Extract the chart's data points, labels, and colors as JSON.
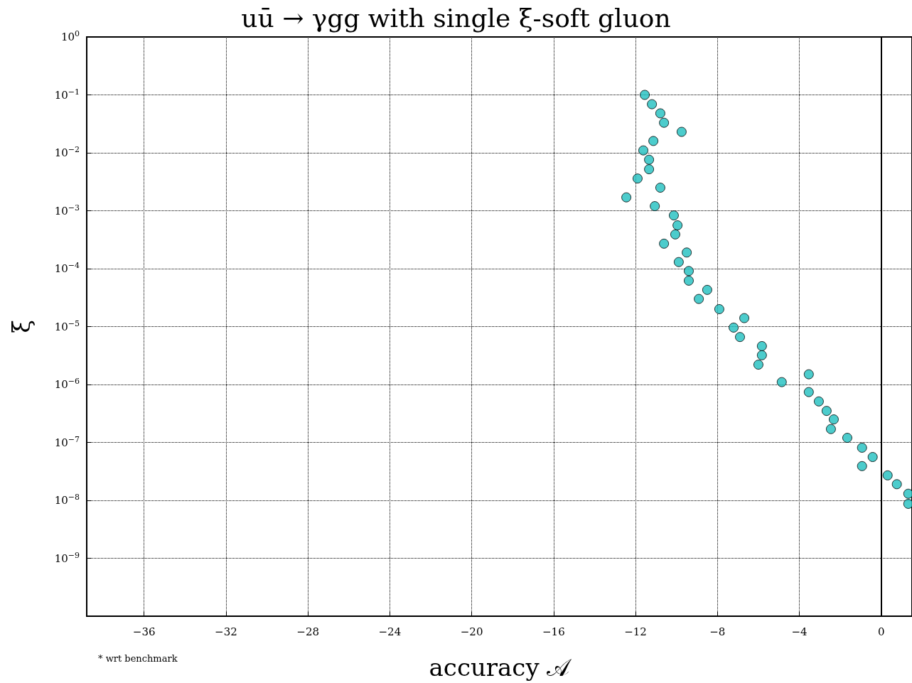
{
  "chart_data": {
    "type": "scatter",
    "title": "uū → γgg with single ξ-soft gluon",
    "xlabel": "accuracy 𝒜",
    "ylabel": "ξ",
    "annotations": [
      "* wrt benchmark"
    ],
    "x": [
      -11.55,
      -11.2,
      -10.79,
      -10.61,
      -9.75,
      -11.13,
      -11.62,
      -11.34,
      -11.34,
      -11.9,
      -10.79,
      -12.45,
      -11.06,
      -10.13,
      -9.95,
      -10.06,
      -10.61,
      -9.5,
      -9.89,
      -9.4,
      -9.4,
      -8.5,
      -8.91,
      -7.91,
      -6.69,
      -7.21,
      -6.9,
      -5.83,
      -5.83,
      -6.0,
      -3.54,
      -4.86,
      -3.54,
      -3.05,
      -2.67,
      -2.32,
      -2.46,
      -1.66,
      -0.94,
      -0.42,
      -0.94,
      0.31,
      0.76,
      1.32,
      1.32
    ],
    "series": [
      {
        "color": "#1fbfbf",
        "values": [
          0.1,
          0.069,
          0.048,
          0.033,
          0.023,
          0.016,
          0.011,
          0.0076,
          0.0052,
          0.0036,
          0.0025,
          0.0017,
          0.0012,
          0.00083,
          0.00056,
          0.00039,
          0.00027,
          0.00019,
          0.00013,
          9.1e-05,
          6.2e-05,
          4.3e-05,
          3e-05,
          2e-05,
          1.4e-05,
          9.6e-06,
          6.6e-06,
          4.6e-06,
          3.2e-06,
          2.2e-06,
          1.5e-06,
          1.1e-06,
          7.4e-07,
          5.1e-07,
          3.5e-07,
          2.5e-07,
          1.7e-07,
          1.2e-07,
          8.1e-08,
          5.6e-08,
          3.9e-08,
          2.7e-08,
          1.9e-08,
          1.3e-08,
          8.7e-09
        ]
      }
    ],
    "xlim": [
      -38.8,
      1.5
    ],
    "xticks": [
      {
        "value": -36,
        "label": "−36"
      },
      {
        "value": -32,
        "label": "−32"
      },
      {
        "value": -28,
        "label": "−28"
      },
      {
        "value": -24,
        "label": "−24"
      },
      {
        "value": -20,
        "label": "−20"
      },
      {
        "value": -16,
        "label": "−16"
      },
      {
        "value": -12,
        "label": "−12"
      },
      {
        "value": -8,
        "label": "−8"
      },
      {
        "value": -4,
        "label": "−4"
      },
      0
    ],
    "ylim": [
      1e-10,
      1
    ],
    "yticks": [
      {
        "value": 1e-10,
        "label": null
      },
      {
        "value": 1e-09,
        "label": "10$^{−9}$"
      },
      {
        "value": 1e-08,
        "label": "10$^{−8}$"
      },
      {
        "value": 1e-07,
        "label": "10$^{−7}$"
      },
      {
        "value": 1e-06,
        "label": "10$^{−6}$"
      },
      {
        "value": 1e-05,
        "label": "10$^{−5}$"
      },
      {
        "value": 0.0001,
        "label": "10$^{−4}$"
      },
      {
        "value": 0.001,
        "label": "10$^{−3}$"
      },
      {
        "value": 0.01,
        "label": "10$^{−2}$"
      },
      {
        "value": 0.1,
        "label": "10$^{−1}$"
      },
      {
        "value": 1,
        "label": "10$^{0}$"
      }
    ],
    "log": "y",
    "grid": true,
    "marker": "circle",
    "ref_lines": [
      {
        "axis": "x",
        "value": 0,
        "color": "#000000",
        "line_style": "solid"
      }
    ]
  }
}
